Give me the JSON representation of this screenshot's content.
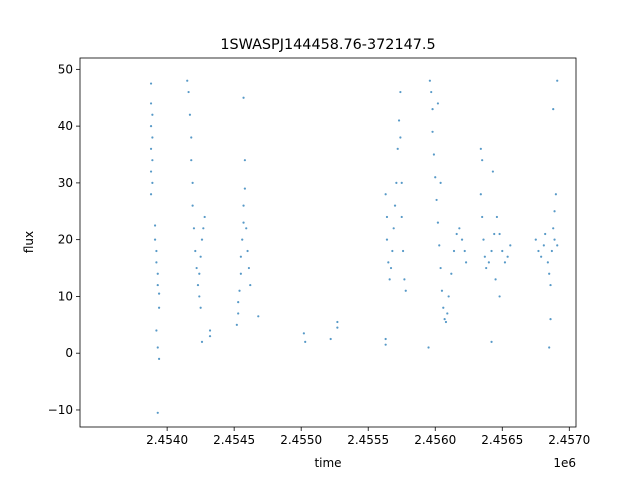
{
  "chart_data": {
    "type": "scatter",
    "title": "1SWASPJ144458.76-372147.5",
    "xlabel": "time",
    "ylabel": "flux",
    "x_offset_label": "1e6",
    "xlim": [
      2.45335,
      2.45705
    ],
    "ylim": [
      -13,
      52
    ],
    "x_ticks": [
      2.454,
      2.4545,
      2.455,
      2.4555,
      2.456,
      2.4565,
      2.457
    ],
    "x_tick_labels": [
      "2.4540",
      "2.4545",
      "2.4550",
      "2.4555",
      "2.4560",
      "2.4565",
      "2.4570"
    ],
    "y_ticks": [
      -10,
      0,
      10,
      20,
      30,
      40,
      50
    ],
    "y_tick_labels": [
      "−10",
      "0",
      "10",
      "20",
      "30",
      "40",
      "50"
    ],
    "grid": false,
    "legend": "none",
    "marker_color": "#1f77b4",
    "series": [
      {
        "values": [
          [
            2.45388,
            47.5
          ],
          [
            2.45388,
            44.0
          ],
          [
            2.45388,
            40.0
          ],
          [
            2.45388,
            36.0
          ],
          [
            2.45388,
            32.0
          ],
          [
            2.45388,
            28.0
          ],
          [
            2.45389,
            42.0
          ],
          [
            2.45389,
            38.0
          ],
          [
            2.45389,
            34.0
          ],
          [
            2.45389,
            30.0
          ],
          [
            2.45391,
            22.5
          ],
          [
            2.45391,
            20.0
          ],
          [
            2.45392,
            18.0
          ],
          [
            2.45392,
            16.0
          ],
          [
            2.45393,
            14.0
          ],
          [
            2.45393,
            12.0
          ],
          [
            2.45394,
            10.5
          ],
          [
            2.45394,
            8.0
          ],
          [
            2.45392,
            4.0
          ],
          [
            2.45393,
            1.0
          ],
          [
            2.45394,
            -1.0
          ],
          [
            2.45393,
            -10.5
          ],
          [
            2.45415,
            48.0
          ],
          [
            2.45416,
            46.0
          ],
          [
            2.45417,
            42.0
          ],
          [
            2.45418,
            38.0
          ],
          [
            2.45418,
            34.0
          ],
          [
            2.45419,
            30.0
          ],
          [
            2.45419,
            26.0
          ],
          [
            2.4542,
            22.0
          ],
          [
            2.45421,
            18.0
          ],
          [
            2.45422,
            15.0
          ],
          [
            2.45423,
            12.0
          ],
          [
            2.45424,
            10.0
          ],
          [
            2.45425,
            8.0
          ],
          [
            2.45424,
            14.0
          ],
          [
            2.45425,
            17.0
          ],
          [
            2.45426,
            20.0
          ],
          [
            2.45427,
            22.0
          ],
          [
            2.45428,
            24.0
          ],
          [
            2.45426,
            2.0
          ],
          [
            2.45432,
            4.0
          ],
          [
            2.45432,
            3.0
          ],
          [
            2.45452,
            5.0
          ],
          [
            2.45453,
            7.0
          ],
          [
            2.45453,
            9.0
          ],
          [
            2.45454,
            11.0
          ],
          [
            2.45455,
            14.0
          ],
          [
            2.45455,
            17.0
          ],
          [
            2.45456,
            20.0
          ],
          [
            2.45457,
            23.0
          ],
          [
            2.45457,
            26.0
          ],
          [
            2.45458,
            29.0
          ],
          [
            2.45458,
            34.0
          ],
          [
            2.45457,
            45.0
          ],
          [
            2.45459,
            22.0
          ],
          [
            2.4546,
            18.0
          ],
          [
            2.45461,
            15.0
          ],
          [
            2.45462,
            12.0
          ],
          [
            2.45468,
            6.5
          ],
          [
            2.45502,
            3.5
          ],
          [
            2.45503,
            2.0
          ],
          [
            2.45522,
            2.5
          ],
          [
            2.45527,
            5.5
          ],
          [
            2.45527,
            4.5
          ],
          [
            2.45563,
            1.5
          ],
          [
            2.45563,
            2.5
          ],
          [
            2.45563,
            28.0
          ],
          [
            2.45564,
            24.0
          ],
          [
            2.45564,
            20.0
          ],
          [
            2.45565,
            16.0
          ],
          [
            2.45566,
            13.0
          ],
          [
            2.45567,
            15.0
          ],
          [
            2.45568,
            18.0
          ],
          [
            2.45569,
            22.0
          ],
          [
            2.4557,
            26.0
          ],
          [
            2.45571,
            30.0
          ],
          [
            2.45572,
            36.0
          ],
          [
            2.45573,
            41.0
          ],
          [
            2.45574,
            46.0
          ],
          [
            2.45574,
            38.0
          ],
          [
            2.45575,
            30.0
          ],
          [
            2.45575,
            24.0
          ],
          [
            2.45576,
            18.0
          ],
          [
            2.45577,
            13.0
          ],
          [
            2.45578,
            11.0
          ],
          [
            2.45596,
            48.0
          ],
          [
            2.45597,
            46.0
          ],
          [
            2.45598,
            43.0
          ],
          [
            2.45598,
            39.0
          ],
          [
            2.45599,
            35.0
          ],
          [
            2.456,
            31.0
          ],
          [
            2.45601,
            27.0
          ],
          [
            2.45602,
            23.0
          ],
          [
            2.45603,
            19.0
          ],
          [
            2.45604,
            15.0
          ],
          [
            2.45605,
            11.0
          ],
          [
            2.45606,
            8.0
          ],
          [
            2.45607,
            6.0
          ],
          [
            2.45608,
            5.5
          ],
          [
            2.45609,
            7.0
          ],
          [
            2.4561,
            10.0
          ],
          [
            2.45612,
            14.0
          ],
          [
            2.45614,
            18.0
          ],
          [
            2.45616,
            21.0
          ],
          [
            2.45618,
            22.0
          ],
          [
            2.4562,
            20.0
          ],
          [
            2.45622,
            18.0
          ],
          [
            2.45623,
            16.0
          ],
          [
            2.45595,
            1.0
          ],
          [
            2.45602,
            44.0
          ],
          [
            2.45604,
            30.0
          ],
          [
            2.45634,
            36.0
          ],
          [
            2.45635,
            34.0
          ],
          [
            2.45634,
            28.0
          ],
          [
            2.45635,
            24.0
          ],
          [
            2.45636,
            20.0
          ],
          [
            2.45637,
            17.0
          ],
          [
            2.45638,
            15.0
          ],
          [
            2.4564,
            16.0
          ],
          [
            2.45642,
            18.0
          ],
          [
            2.45644,
            21.0
          ],
          [
            2.45646,
            24.0
          ],
          [
            2.45648,
            21.0
          ],
          [
            2.4565,
            18.0
          ],
          [
            2.45652,
            16.0
          ],
          [
            2.45654,
            17.0
          ],
          [
            2.45656,
            19.0
          ],
          [
            2.45645,
            13.0
          ],
          [
            2.45648,
            10.0
          ],
          [
            2.45643,
            32.0
          ],
          [
            2.45642,
            2.0
          ],
          [
            2.45675,
            20.0
          ],
          [
            2.45677,
            18.0
          ],
          [
            2.45679,
            17.0
          ],
          [
            2.45681,
            19.0
          ],
          [
            2.45682,
            21.0
          ],
          [
            2.45684,
            16.0
          ],
          [
            2.45685,
            14.0
          ],
          [
            2.45686,
            12.0
          ],
          [
            2.45687,
            18.0
          ],
          [
            2.45688,
            22.0
          ],
          [
            2.45689,
            25.0
          ],
          [
            2.4569,
            28.0
          ],
          [
            2.45686,
            6.0
          ],
          [
            2.45685,
            1.0
          ],
          [
            2.45688,
            43.0
          ],
          [
            2.45691,
            48.0
          ],
          [
            2.45689,
            20.0
          ],
          [
            2.45691,
            19.0
          ]
        ]
      }
    ]
  }
}
